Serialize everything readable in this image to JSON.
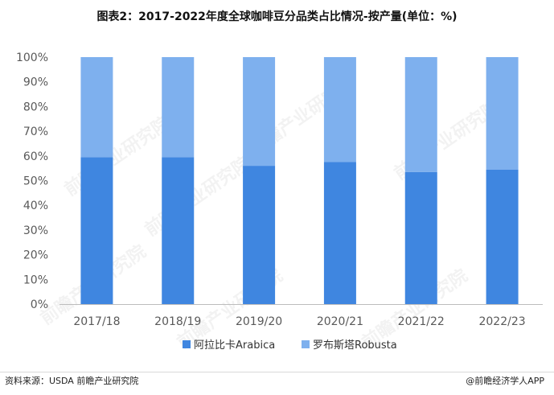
{
  "title": "图表2：2017-2022年度全球咖啡豆分品类占比情况-按产量(单位：%)",
  "source_text": "资料来源：USDA 前瞻产业研究院",
  "brand_text": "@前瞻经济学人APP",
  "watermark_text": "前瞻产业研究院",
  "colors": {
    "arabica": "#3f86e0",
    "robusta": "#7eb0ee",
    "axis": "#bdbdbd",
    "tick_text": "#595959"
  },
  "chart_data": {
    "type": "bar",
    "stacked": true,
    "categories": [
      "2017/18",
      "2018/19",
      "2019/20",
      "2020/21",
      "2021/22",
      "2022/23"
    ],
    "series": [
      {
        "name": "阿拉比卡Arabica",
        "values": [
          59.5,
          59.5,
          56,
          57.5,
          53.5,
          54.5
        ]
      },
      {
        "name": "罗布斯塔Robusta",
        "values": [
          40.5,
          40.5,
          44,
          42.5,
          46.5,
          45.5
        ]
      }
    ],
    "ylim": [
      0,
      100
    ],
    "yticks": [
      "0%",
      "10%",
      "20%",
      "30%",
      "40%",
      "50%",
      "60%",
      "70%",
      "80%",
      "90%",
      "100%"
    ],
    "grid": false,
    "legend_position": "bottom"
  }
}
